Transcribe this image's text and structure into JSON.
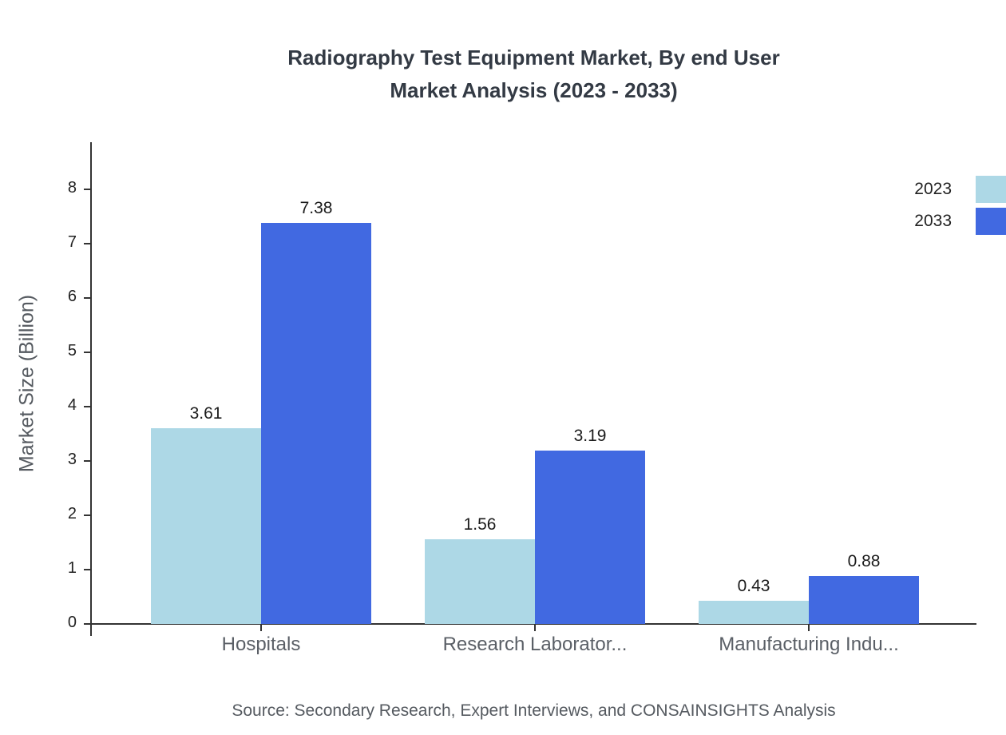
{
  "chart_data": {
    "type": "bar",
    "title_lines": [
      "Radiography Test Equipment Market, By end User",
      "Market Analysis (2023 - 2033)"
    ],
    "ylabel": "Market Size (Billion)",
    "ylim": [
      0,
      8
    ],
    "ytick_step": 1,
    "grid": false,
    "legend_position": "top-right",
    "categories": [
      "Hospitals",
      "Research Laborator...",
      "Manufacturing Indu..."
    ],
    "series": [
      {
        "name": "2023",
        "color": "#ADD8E6",
        "values": [
          3.61,
          1.56,
          0.43
        ]
      },
      {
        "name": "2033",
        "color": "#4169E1",
        "values": [
          7.38,
          3.19,
          0.88
        ]
      }
    ],
    "source": "Source: Secondary Research, Expert Interviews, and CONSAINSIGHTS Analysis"
  }
}
